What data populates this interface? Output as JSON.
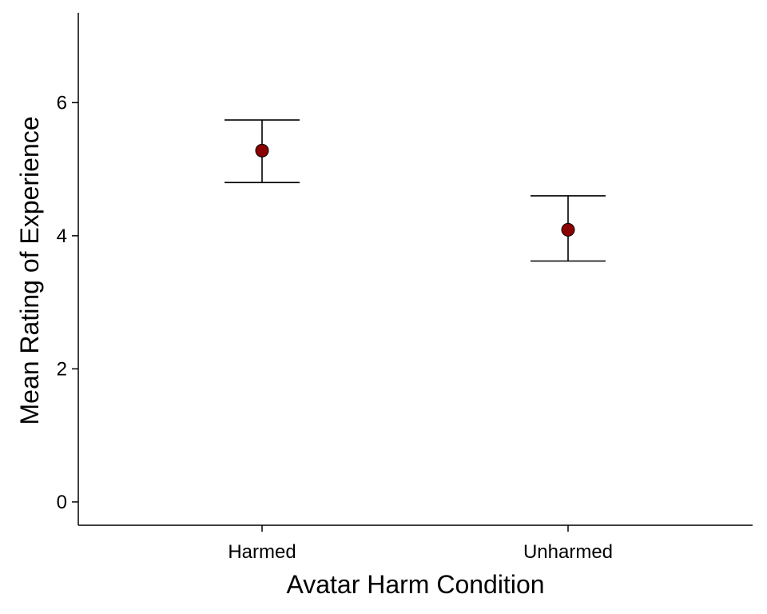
{
  "chart_data": {
    "type": "scatter",
    "xlabel": "Avatar Harm Condition",
    "ylabel": "Mean Rating of Experience",
    "categories": [
      "Harmed",
      "Unharmed"
    ],
    "values": [
      5.28,
      4.09
    ],
    "error_bars": [
      {
        "lower": 4.8,
        "upper": 5.74
      },
      {
        "lower": 3.62,
        "upper": 4.6
      }
    ],
    "yticks": [
      0,
      2,
      4,
      6
    ],
    "ylim": [
      -0.35,
      7.35
    ],
    "grid": false,
    "point_color": "#8B0000"
  }
}
